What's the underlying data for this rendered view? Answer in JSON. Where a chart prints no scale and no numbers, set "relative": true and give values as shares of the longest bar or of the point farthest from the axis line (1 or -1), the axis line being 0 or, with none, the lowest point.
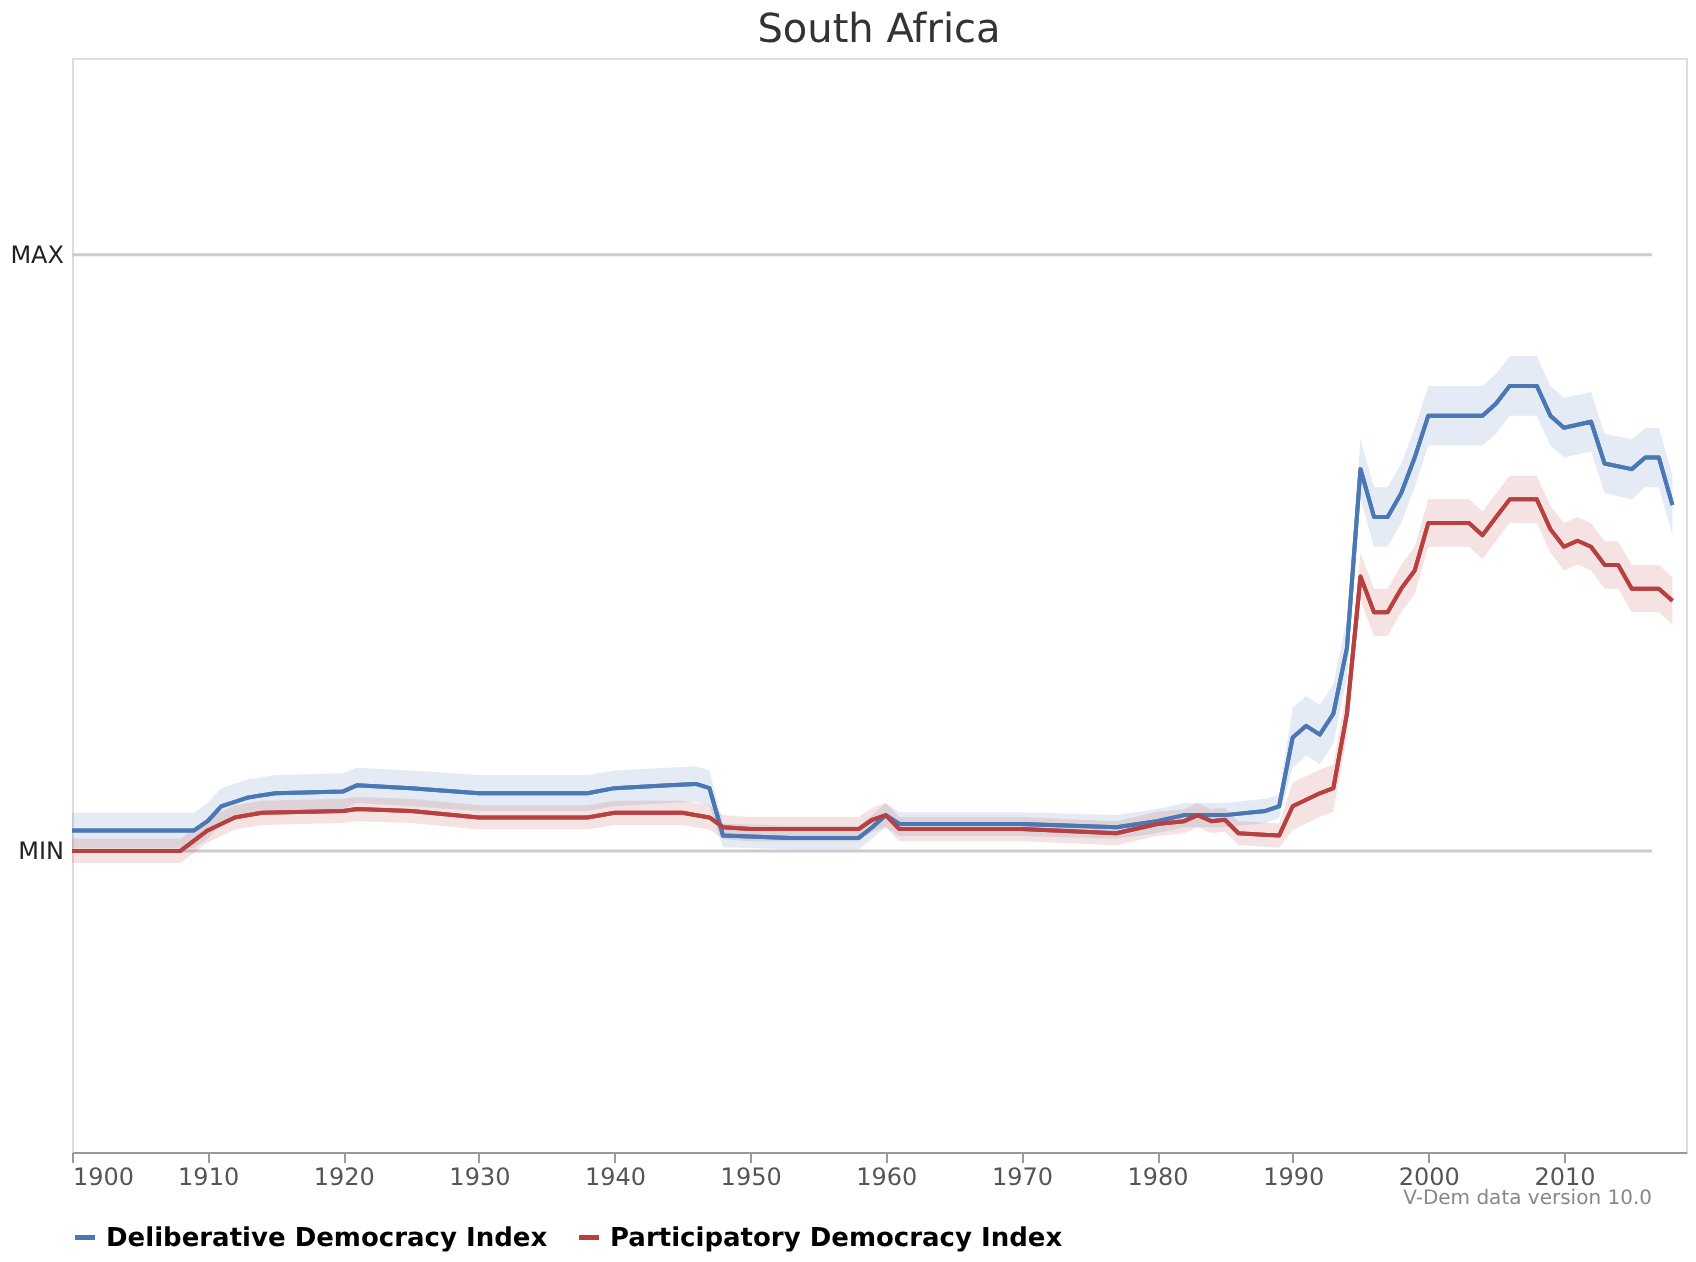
{
  "chart_data": {
    "type": "line",
    "title": "South Africa",
    "relative": true,
    "xlim": [
      1900,
      2019
    ],
    "xticks": [
      1900,
      1910,
      1920,
      1930,
      1940,
      1950,
      1960,
      1970,
      1980,
      1990,
      2000,
      2010
    ],
    "ref_lines": [
      {
        "axis": "y",
        "value": 1.282,
        "label": "MAX",
        "color": "#cccccc"
      },
      {
        "axis": "y",
        "value": 0,
        "label": "MIN",
        "color": "#cccccc"
      }
    ],
    "legend": "bottom",
    "marker": "none",
    "line_style": "solid",
    "annotations": [
      "V-Dem data version 10.0"
    ],
    "series": [
      {
        "name": "Deliberative Democracy Index",
        "color": "#4a78b5",
        "x": [
          1900,
          1909,
          1910,
          1911,
          1913,
          1915,
          1920,
          1921,
          1925,
          1930,
          1938,
          1940,
          1944,
          1946,
          1947,
          1948,
          1953,
          1958,
          1959,
          1960,
          1961,
          1970,
          1977,
          1980,
          1982,
          1985,
          1988,
          1989,
          1990,
          1991,
          1992,
          1993,
          1994,
          1995,
          1996,
          1997,
          1998,
          1999,
          2000,
          2004,
          2005,
          2006,
          2008,
          2009,
          2010,
          2012,
          2013,
          2015,
          2016,
          2017,
          2018
        ],
        "values": [
          0.044,
          0.044,
          0.064,
          0.096,
          0.115,
          0.124,
          0.128,
          0.141,
          0.135,
          0.124,
          0.124,
          0.135,
          0.141,
          0.144,
          0.135,
          0.033,
          0.028,
          0.028,
          0.051,
          0.077,
          0.058,
          0.058,
          0.051,
          0.064,
          0.077,
          0.077,
          0.086,
          0.096,
          0.244,
          0.269,
          0.25,
          0.295,
          0.436,
          0.821,
          0.718,
          0.718,
          0.769,
          0.846,
          0.936,
          0.936,
          0.962,
          1,
          1,
          0.936,
          0.91,
          0.923,
          0.833,
          0.821,
          0.846,
          0.846,
          0.744
        ],
        "lower": [
          0.005,
          0.005,
          0.026,
          0.058,
          0.077,
          0.086,
          0.09,
          0.103,
          0.096,
          0.086,
          0.086,
          0.096,
          0.103,
          0.105,
          0.096,
          0.008,
          0.003,
          0.003,
          0.026,
          0.051,
          0.032,
          0.032,
          0.026,
          0.038,
          0.051,
          0.051,
          0.06,
          0.071,
          0.179,
          0.205,
          0.186,
          0.231,
          0.372,
          0.756,
          0.654,
          0.654,
          0.705,
          0.782,
          0.872,
          0.872,
          0.897,
          0.936,
          0.936,
          0.872,
          0.846,
          0.859,
          0.769,
          0.756,
          0.782,
          0.782,
          0.679
        ],
        "upper": [
          0.082,
          0.082,
          0.103,
          0.135,
          0.154,
          0.163,
          0.167,
          0.179,
          0.173,
          0.163,
          0.163,
          0.173,
          0.179,
          0.182,
          0.173,
          0.059,
          0.054,
          0.054,
          0.077,
          0.103,
          0.083,
          0.083,
          0.077,
          0.09,
          0.103,
          0.103,
          0.112,
          0.122,
          0.308,
          0.333,
          0.314,
          0.359,
          0.5,
          0.885,
          0.782,
          0.782,
          0.833,
          0.91,
          1,
          1,
          1.026,
          1.064,
          1.064,
          1,
          0.974,
          0.987,
          0.897,
          0.885,
          0.91,
          0.91,
          0.808
        ]
      },
      {
        "name": "Participatory Democracy Index",
        "color": "#b94040",
        "x": [
          1900,
          1908,
          1910,
          1912,
          1914,
          1920,
          1921,
          1925,
          1930,
          1938,
          1940,
          1945,
          1947,
          1948,
          1950,
          1958,
          1959,
          1960,
          1961,
          1970,
          1977,
          1980,
          1982,
          1983,
          1984,
          1985,
          1986,
          1989,
          1990,
          1992,
          1993,
          1994,
          1995,
          1996,
          1997,
          1998,
          1999,
          2000,
          2003,
          2004,
          2005,
          2006,
          2008,
          2009,
          2010,
          2011,
          2012,
          2013,
          2014,
          2015,
          2017,
          2018
        ],
        "values": [
          0,
          0,
          0.044,
          0.072,
          0.082,
          0.086,
          0.09,
          0.086,
          0.072,
          0.072,
          0.082,
          0.082,
          0.072,
          0.051,
          0.047,
          0.047,
          0.067,
          0.077,
          0.047,
          0.047,
          0.038,
          0.058,
          0.064,
          0.077,
          0.064,
          0.067,
          0.038,
          0.033,
          0.096,
          0.124,
          0.135,
          0.295,
          0.59,
          0.513,
          0.513,
          0.564,
          0.603,
          0.705,
          0.705,
          0.679,
          0.718,
          0.756,
          0.756,
          0.692,
          0.654,
          0.667,
          0.654,
          0.615,
          0.615,
          0.564,
          0.564,
          0.538
        ],
        "lower": [
          -0.026,
          -0.026,
          0.018,
          0.046,
          0.056,
          0.06,
          0.064,
          0.06,
          0.046,
          0.046,
          0.056,
          0.056,
          0.046,
          0.025,
          0.021,
          0.021,
          0.041,
          0.051,
          0.021,
          0.021,
          0.012,
          0.032,
          0.038,
          0.051,
          0.038,
          0.041,
          0.012,
          0.007,
          0.045,
          0.073,
          0.084,
          0.244,
          0.539,
          0.462,
          0.462,
          0.513,
          0.552,
          0.654,
          0.654,
          0.628,
          0.667,
          0.705,
          0.705,
          0.641,
          0.603,
          0.616,
          0.603,
          0.564,
          0.564,
          0.513,
          0.513,
          0.487
        ],
        "upper": [
          0.026,
          0.026,
          0.07,
          0.098,
          0.108,
          0.112,
          0.116,
          0.112,
          0.098,
          0.098,
          0.108,
          0.108,
          0.098,
          0.077,
          0.073,
          0.073,
          0.093,
          0.103,
          0.073,
          0.073,
          0.064,
          0.084,
          0.09,
          0.103,
          0.09,
          0.093,
          0.064,
          0.059,
          0.147,
          0.175,
          0.186,
          0.346,
          0.641,
          0.564,
          0.564,
          0.615,
          0.654,
          0.756,
          0.756,
          0.73,
          0.769,
          0.807,
          0.807,
          0.743,
          0.705,
          0.718,
          0.705,
          0.666,
          0.666,
          0.615,
          0.615,
          0.589
        ]
      }
    ]
  }
}
